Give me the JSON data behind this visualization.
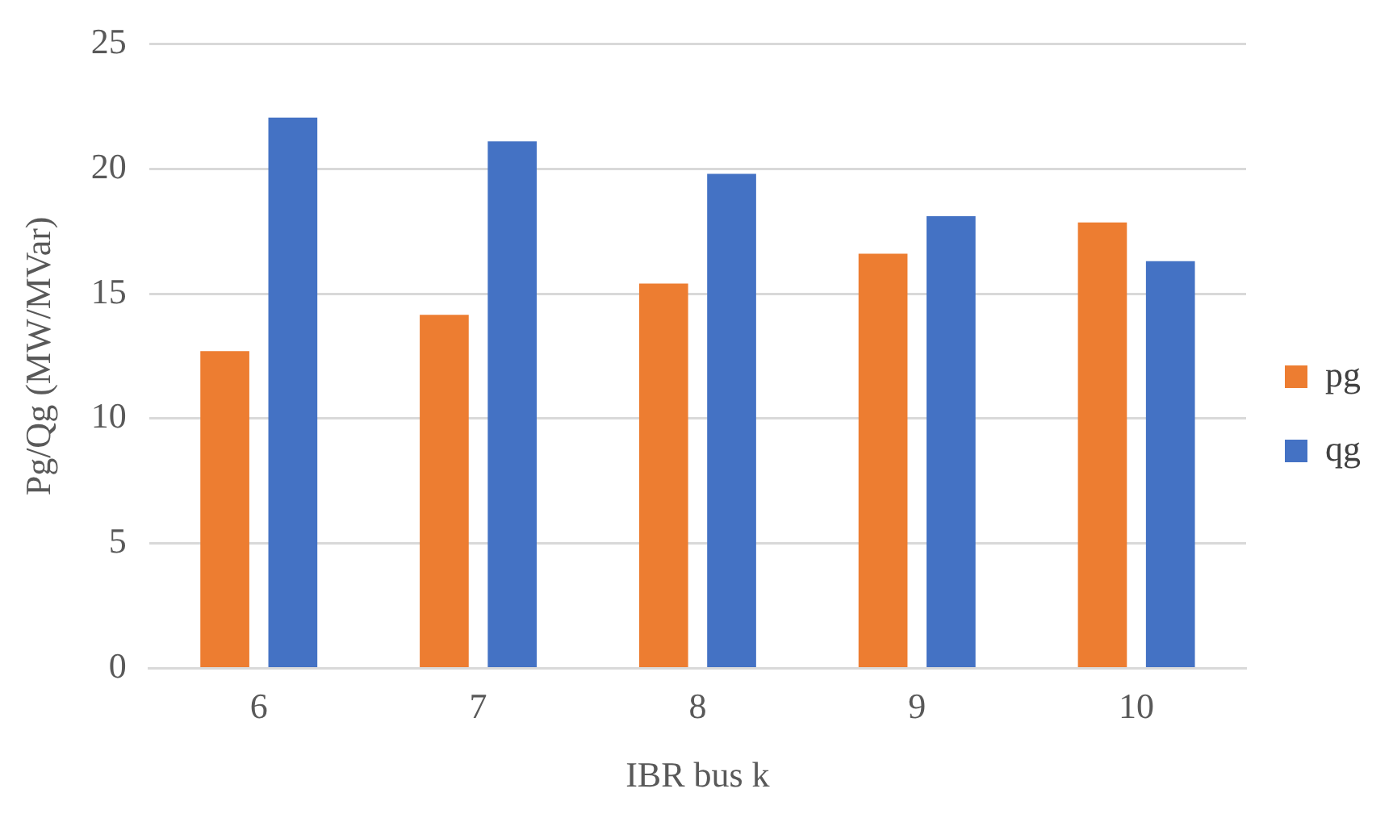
{
  "chart_data": {
    "type": "bar",
    "xlabel": "IBR bus k",
    "ylabel": "Pg/Qg (MW/MVar)",
    "categories": [
      "6",
      "7",
      "8",
      "9",
      "10"
    ],
    "series": [
      {
        "name": "pg",
        "color": "#ed7d31",
        "values": [
          12.7,
          14.15,
          15.4,
          16.6,
          17.85
        ]
      },
      {
        "name": "qg",
        "color": "#4472c4",
        "values": [
          22.05,
          21.1,
          19.8,
          18.1,
          16.3
        ]
      }
    ],
    "ylim": [
      0,
      25
    ],
    "yticks": [
      0,
      5,
      10,
      15,
      20,
      25
    ],
    "grid": "y",
    "legend": "right"
  }
}
